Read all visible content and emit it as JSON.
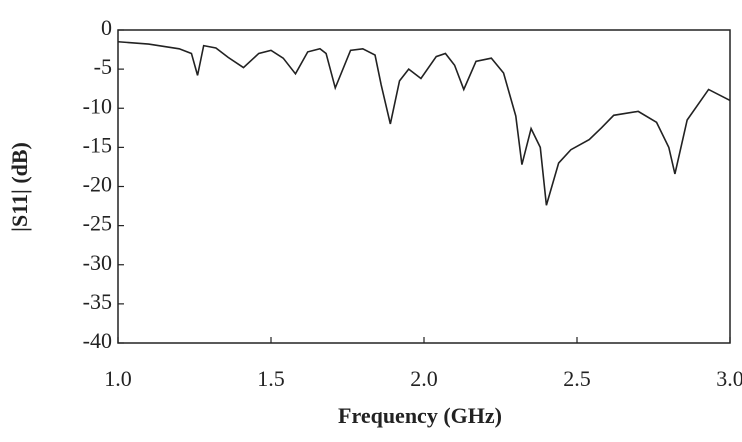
{
  "chart_data": {
    "type": "line",
    "x_label": "Frequency (GHz)",
    "y_label": "|S11| (dB)",
    "x": [
      1.0,
      1.1,
      1.2,
      1.24,
      1.26,
      1.28,
      1.32,
      1.36,
      1.41,
      1.46,
      1.5,
      1.54,
      1.58,
      1.62,
      1.66,
      1.68,
      1.71,
      1.76,
      1.8,
      1.84,
      1.86,
      1.89,
      1.92,
      1.95,
      1.99,
      2.04,
      2.07,
      2.1,
      2.13,
      2.17,
      2.22,
      2.26,
      2.3,
      2.32,
      2.35,
      2.38,
      2.4,
      2.44,
      2.48,
      2.54,
      2.58,
      2.62,
      2.7,
      2.76,
      2.8,
      2.82,
      2.86,
      2.93,
      3.0
    ],
    "series": [
      {
        "name": "S11",
        "color": "#222222",
        "values": [
          -1.5,
          -1.8,
          -2.4,
          -3.0,
          -5.8,
          -2.0,
          -2.3,
          -3.5,
          -4.8,
          -3.0,
          -2.6,
          -3.6,
          -5.6,
          -2.8,
          -2.4,
          -3.0,
          -7.4,
          -2.6,
          -2.4,
          -3.2,
          -7.0,
          -12.0,
          -6.5,
          -5.0,
          -6.2,
          -3.4,
          -3.0,
          -4.5,
          -7.6,
          -4.0,
          -3.6,
          -5.5,
          -11.0,
          -17.2,
          -12.6,
          -15.0,
          -22.4,
          -17.0,
          -15.3,
          -14.0,
          -12.5,
          -10.9,
          -10.4,
          -11.8,
          -15.0,
          -18.4,
          -11.5,
          -7.6,
          -9.0
        ]
      }
    ],
    "xlim": [
      1.0,
      3.0
    ],
    "xticks": [
      {
        "value": 1.0,
        "label": "1.0"
      },
      1.5,
      {
        "value": 2.0,
        "label": "2.0"
      },
      2.5,
      {
        "value": 3.0,
        "label": "3.0"
      }
    ],
    "ylim": [
      -40,
      0
    ],
    "yticks": [
      0,
      -5,
      -10,
      -15,
      -20,
      -25,
      -30,
      -35,
      -40
    ],
    "grid": false
  }
}
